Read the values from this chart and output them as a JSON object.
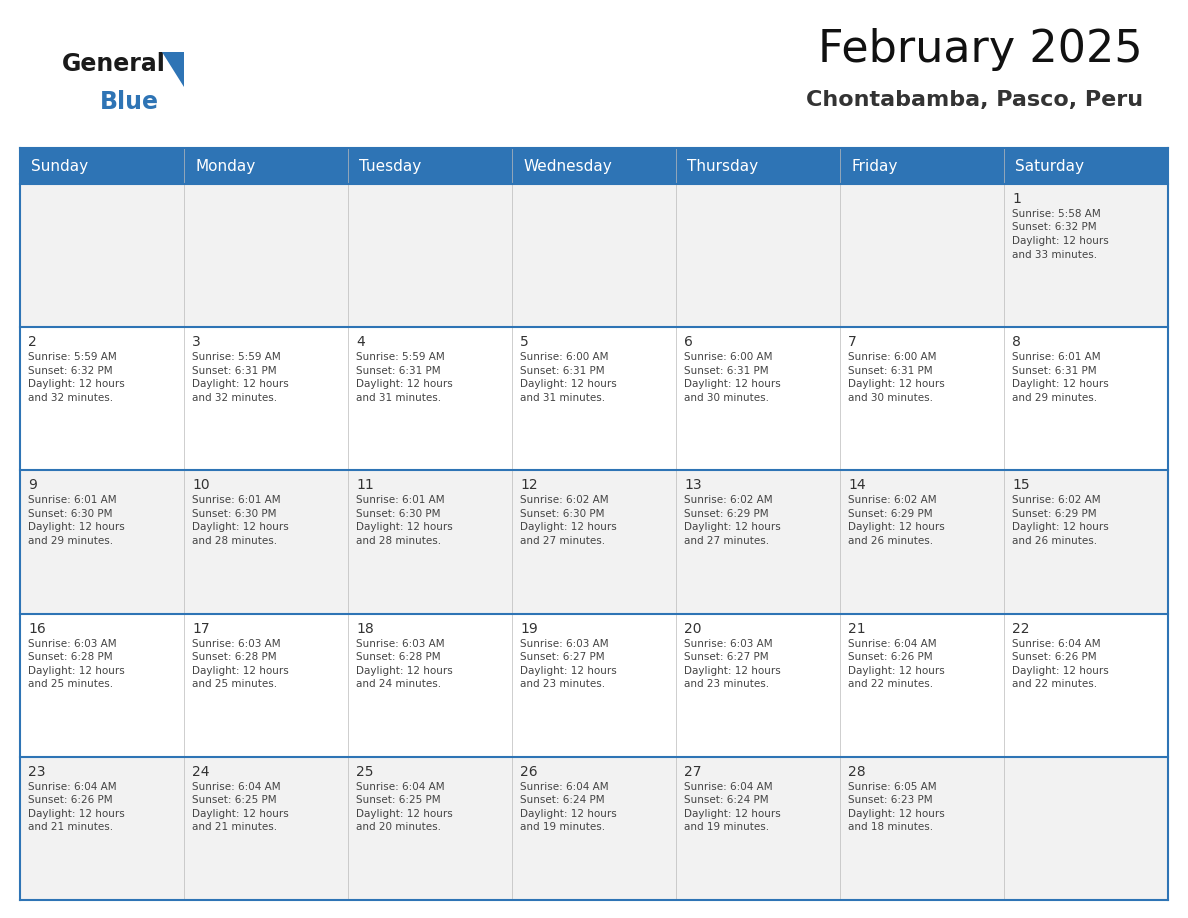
{
  "title": "February 2025",
  "subtitle": "Chontabamba, Pasco, Peru",
  "header_bg": "#2E74B5",
  "header_text_color": "#FFFFFF",
  "day_names": [
    "Sunday",
    "Monday",
    "Tuesday",
    "Wednesday",
    "Thursday",
    "Friday",
    "Saturday"
  ],
  "row_bg_even": "#F2F2F2",
  "row_bg_odd": "#FFFFFF",
  "cell_border_color": "#2E74B5",
  "day_number_color": "#333333",
  "day_info_color": "#444444",
  "logo_general_color": "#1a1a1a",
  "logo_blue_color": "#2E74B5",
  "logo_triangle_color": "#2E74B5",
  "title_fontsize": 32,
  "subtitle_fontsize": 16,
  "header_fontsize": 11,
  "day_num_fontsize": 10,
  "info_fontsize": 7.5,
  "calendar": [
    [
      {
        "day": null
      },
      {
        "day": null
      },
      {
        "day": null
      },
      {
        "day": null
      },
      {
        "day": null
      },
      {
        "day": null
      },
      {
        "day": 1,
        "sunrise": "5:58 AM",
        "sunset": "6:32 PM",
        "daylight": "12 hours\nand 33 minutes."
      }
    ],
    [
      {
        "day": 2,
        "sunrise": "5:59 AM",
        "sunset": "6:32 PM",
        "daylight": "12 hours\nand 32 minutes."
      },
      {
        "day": 3,
        "sunrise": "5:59 AM",
        "sunset": "6:31 PM",
        "daylight": "12 hours\nand 32 minutes."
      },
      {
        "day": 4,
        "sunrise": "5:59 AM",
        "sunset": "6:31 PM",
        "daylight": "12 hours\nand 31 minutes."
      },
      {
        "day": 5,
        "sunrise": "6:00 AM",
        "sunset": "6:31 PM",
        "daylight": "12 hours\nand 31 minutes."
      },
      {
        "day": 6,
        "sunrise": "6:00 AM",
        "sunset": "6:31 PM",
        "daylight": "12 hours\nand 30 minutes."
      },
      {
        "day": 7,
        "sunrise": "6:00 AM",
        "sunset": "6:31 PM",
        "daylight": "12 hours\nand 30 minutes."
      },
      {
        "day": 8,
        "sunrise": "6:01 AM",
        "sunset": "6:31 PM",
        "daylight": "12 hours\nand 29 minutes."
      }
    ],
    [
      {
        "day": 9,
        "sunrise": "6:01 AM",
        "sunset": "6:30 PM",
        "daylight": "12 hours\nand 29 minutes."
      },
      {
        "day": 10,
        "sunrise": "6:01 AM",
        "sunset": "6:30 PM",
        "daylight": "12 hours\nand 28 minutes."
      },
      {
        "day": 11,
        "sunrise": "6:01 AM",
        "sunset": "6:30 PM",
        "daylight": "12 hours\nand 28 minutes."
      },
      {
        "day": 12,
        "sunrise": "6:02 AM",
        "sunset": "6:30 PM",
        "daylight": "12 hours\nand 27 minutes."
      },
      {
        "day": 13,
        "sunrise": "6:02 AM",
        "sunset": "6:29 PM",
        "daylight": "12 hours\nand 27 minutes."
      },
      {
        "day": 14,
        "sunrise": "6:02 AM",
        "sunset": "6:29 PM",
        "daylight": "12 hours\nand 26 minutes."
      },
      {
        "day": 15,
        "sunrise": "6:02 AM",
        "sunset": "6:29 PM",
        "daylight": "12 hours\nand 26 minutes."
      }
    ],
    [
      {
        "day": 16,
        "sunrise": "6:03 AM",
        "sunset": "6:28 PM",
        "daylight": "12 hours\nand 25 minutes."
      },
      {
        "day": 17,
        "sunrise": "6:03 AM",
        "sunset": "6:28 PM",
        "daylight": "12 hours\nand 25 minutes."
      },
      {
        "day": 18,
        "sunrise": "6:03 AM",
        "sunset": "6:28 PM",
        "daylight": "12 hours\nand 24 minutes."
      },
      {
        "day": 19,
        "sunrise": "6:03 AM",
        "sunset": "6:27 PM",
        "daylight": "12 hours\nand 23 minutes."
      },
      {
        "day": 20,
        "sunrise": "6:03 AM",
        "sunset": "6:27 PM",
        "daylight": "12 hours\nand 23 minutes."
      },
      {
        "day": 21,
        "sunrise": "6:04 AM",
        "sunset": "6:26 PM",
        "daylight": "12 hours\nand 22 minutes."
      },
      {
        "day": 22,
        "sunrise": "6:04 AM",
        "sunset": "6:26 PM",
        "daylight": "12 hours\nand 22 minutes."
      }
    ],
    [
      {
        "day": 23,
        "sunrise": "6:04 AM",
        "sunset": "6:26 PM",
        "daylight": "12 hours\nand 21 minutes."
      },
      {
        "day": 24,
        "sunrise": "6:04 AM",
        "sunset": "6:25 PM",
        "daylight": "12 hours\nand 21 minutes."
      },
      {
        "day": 25,
        "sunrise": "6:04 AM",
        "sunset": "6:25 PM",
        "daylight": "12 hours\nand 20 minutes."
      },
      {
        "day": 26,
        "sunrise": "6:04 AM",
        "sunset": "6:24 PM",
        "daylight": "12 hours\nand 19 minutes."
      },
      {
        "day": 27,
        "sunrise": "6:04 AM",
        "sunset": "6:24 PM",
        "daylight": "12 hours\nand 19 minutes."
      },
      {
        "day": 28,
        "sunrise": "6:05 AM",
        "sunset": "6:23 PM",
        "daylight": "12 hours\nand 18 minutes."
      },
      {
        "day": null
      }
    ]
  ]
}
